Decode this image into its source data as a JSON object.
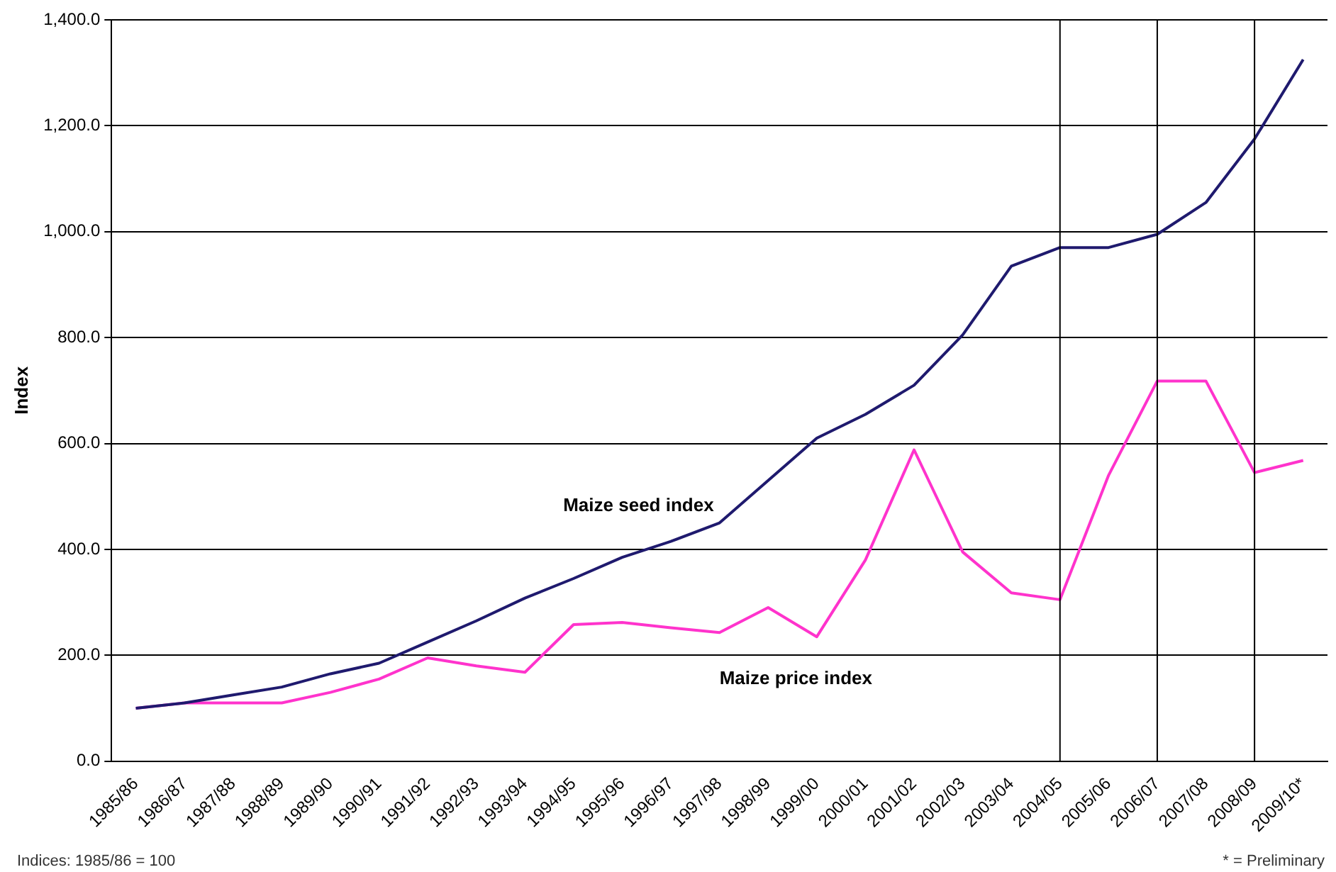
{
  "chart_data": {
    "type": "line",
    "ylabel": "Index",
    "categories": [
      "1985/86",
      "1986/87",
      "1987/88",
      "1988/89",
      "1989/90",
      "1990/91",
      "1991/92",
      "1992/93",
      "1993/94",
      "1994/95",
      "1995/96",
      "1996/97",
      "1997/98",
      "1998/99",
      "1999/00",
      "2000/01",
      "2001/02",
      "2002/03",
      "2003/04",
      "2004/05",
      "2005/06",
      "2006/07",
      "2007/08",
      "2008/09",
      "2009/10*"
    ],
    "series": [
      {
        "name": "Maize seed index",
        "color": "#1f1a6e",
        "values": [
          100,
          110,
          125,
          140,
          165,
          185,
          225,
          265,
          308,
          345,
          385,
          415,
          450,
          530,
          610,
          655,
          710,
          805,
          935,
          970,
          970,
          995,
          1055,
          1175,
          1325
        ]
      },
      {
        "name": "Maize price index",
        "color": "#ff33cc",
        "values": [
          100,
          110,
          110,
          110,
          130,
          155,
          195,
          180,
          168,
          258,
          262,
          252,
          243,
          290,
          235,
          380,
          588,
          395,
          318,
          305,
          540,
          718,
          718,
          545,
          568
        ]
      }
    ],
    "ylim": [
      0,
      1400
    ],
    "yticks": [
      {
        "value": 0,
        "label": "0.0"
      },
      {
        "value": 200,
        "label": "200.0"
      },
      {
        "value": 400,
        "label": "400.0"
      },
      {
        "value": 600,
        "label": "600.0"
      },
      {
        "value": 800,
        "label": "800.0"
      },
      {
        "value": 1000,
        "label": "1,000.0"
      },
      {
        "value": 1200,
        "label": "1,200.0"
      },
      {
        "value": 1400,
        "label": "1,400.0"
      }
    ],
    "grid": "y",
    "legend": false,
    "marker": "none",
    "line_style": "solid",
    "ref_lines": [
      {
        "axis": "x",
        "value": "2004/05"
      },
      {
        "axis": "x",
        "value": "2006/07"
      },
      {
        "axis": "x",
        "value": "2008/09"
      }
    ],
    "annotations": [
      "Indices: 1985/86 = 100",
      "* = Preliminary"
    ]
  }
}
